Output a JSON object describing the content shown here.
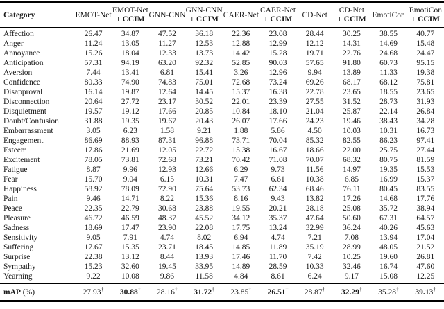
{
  "colors": {
    "background": "#ffffff",
    "text": "#1a1a1a",
    "rule": "#000000"
  },
  "table": {
    "header": {
      "category_label": "Category",
      "model_columns": [
        {
          "line1": "EMOT-Net",
          "line2": ""
        },
        {
          "line1": "EMOT-Net",
          "line2": "+ CCIM"
        },
        {
          "line1": "GNN-CNN",
          "line2": ""
        },
        {
          "line1": "GNN-CNN",
          "line2": "+ CCIM"
        },
        {
          "line1": "CAER-Net",
          "line2": ""
        },
        {
          "line1": "CAER-Net",
          "line2": "+ CCIM"
        },
        {
          "line1": "CD-Net",
          "line2": ""
        },
        {
          "line1": "CD-Net",
          "line2": "+ CCIM"
        },
        {
          "line1": "EmotiCon",
          "line2": ""
        },
        {
          "line1": "EmotiCon",
          "line2": "+ CCIM"
        }
      ]
    },
    "rows": [
      {
        "category": "Affection",
        "values": [
          "26.47",
          "34.87",
          "47.52",
          "36.18",
          "22.36",
          "23.08",
          "28.44",
          "30.25",
          "38.55",
          "40.77"
        ]
      },
      {
        "category": "Anger",
        "values": [
          "11.24",
          "13.05",
          "11.27",
          "12.53",
          "12.88",
          "12.99",
          "12.12",
          "14.31",
          "14.69",
          "15.48"
        ]
      },
      {
        "category": "Annoyance",
        "values": [
          "15.26",
          "18.04",
          "12.33",
          "13.73",
          "14.42",
          "15.28",
          "19.71",
          "22.76",
          "24.68",
          "24.47"
        ]
      },
      {
        "category": "Anticipation",
        "values": [
          "57.31",
          "94.19",
          "63.20",
          "92.32",
          "52.85",
          "90.03",
          "57.65",
          "91.80",
          "60.73",
          "95.15"
        ]
      },
      {
        "category": "Aversion",
        "values": [
          "7.44",
          "13.41",
          "6.81",
          "15.41",
          "3.26",
          "12.96",
          "9.94",
          "13.89",
          "11.33",
          "19.38"
        ]
      },
      {
        "category": "Confidence",
        "values": [
          "80.33",
          "74.90",
          "74.83",
          "75.01",
          "72.68",
          "73.24",
          "69.26",
          "68.17",
          "68.12",
          "75.81"
        ]
      },
      {
        "category": "Disapproval",
        "values": [
          "16.14",
          "19.87",
          "12.64",
          "14.45",
          "15.37",
          "16.38",
          "22.78",
          "23.65",
          "18.55",
          "23.65"
        ]
      },
      {
        "category": "Disconnection",
        "values": [
          "20.64",
          "27.72",
          "23.17",
          "30.52",
          "22.01",
          "23.39",
          "27.55",
          "31.52",
          "28.73",
          "31.93"
        ]
      },
      {
        "category": "Disquietment",
        "values": [
          "19.57",
          "19.12",
          "17.66",
          "20.85",
          "10.84",
          "18.10",
          "21.04",
          "25.87",
          "22.14",
          "26.84"
        ]
      },
      {
        "category": "Doubt/Confusion",
        "values": [
          "31.88",
          "19.35",
          "19.67",
          "20.43",
          "26.07",
          "17.66",
          "24.23",
          "19.46",
          "38.43",
          "34.28"
        ]
      },
      {
        "category": "Embarrassment",
        "values": [
          "3.05",
          "6.23",
          "1.58",
          "9.21",
          "1.88",
          "5.86",
          "4.50",
          "10.03",
          "10.31",
          "16.73"
        ]
      },
      {
        "category": "Engagement",
        "values": [
          "86.69",
          "88.93",
          "87.31",
          "96.88",
          "73.71",
          "70.04",
          "85.32",
          "82.55",
          "86.23",
          "97.41"
        ]
      },
      {
        "category": "Esteem",
        "values": [
          "17.86",
          "21.69",
          "12.05",
          "22.72",
          "15.38",
          "16.67",
          "18.66",
          "22.00",
          "25.75",
          "27.44"
        ]
      },
      {
        "category": "Excitement",
        "values": [
          "78.05",
          "73.81",
          "72.68",
          "73.21",
          "70.42",
          "71.08",
          "70.07",
          "68.32",
          "80.75",
          "81.59"
        ]
      },
      {
        "category": "Fatigue",
        "values": [
          "8.87",
          "9.96",
          "12.93",
          "12.66",
          "6.29",
          "9.73",
          "11.56",
          "14.97",
          "19.35",
          "15.53"
        ]
      },
      {
        "category": "Fear",
        "values": [
          "15.70",
          "9.04",
          "6.15",
          "10.31",
          "7.47",
          "6.61",
          "10.38",
          "6.85",
          "16.99",
          "15.37"
        ]
      },
      {
        "category": "Happiness",
        "values": [
          "58.92",
          "78.09",
          "72.90",
          "75.64",
          "53.73",
          "62.34",
          "68.46",
          "76.11",
          "80.45",
          "83.55"
        ]
      },
      {
        "category": "Pain",
        "values": [
          "9.46",
          "14.71",
          "8.22",
          "15.36",
          "8.16",
          "9.43",
          "13.82",
          "17.26",
          "14.68",
          "17.76"
        ]
      },
      {
        "category": "Peace",
        "values": [
          "22.35",
          "22.79",
          "30.68",
          "23.88",
          "19.55",
          "20.21",
          "28.18",
          "25.08",
          "35.72",
          "38.94"
        ]
      },
      {
        "category": "Pleasure",
        "values": [
          "46.72",
          "46.59",
          "48.37",
          "45.52",
          "34.12",
          "35.37",
          "47.64",
          "50.60",
          "67.31",
          "64.57"
        ]
      },
      {
        "category": "Sadness",
        "values": [
          "18.69",
          "17.47",
          "23.90",
          "22.08",
          "17.75",
          "13.24",
          "32.99",
          "36.24",
          "40.26",
          "45.63"
        ]
      },
      {
        "category": "Sensitivity",
        "values": [
          "9.05",
          "7.91",
          "4.74",
          "8.02",
          "6.94",
          "4.74",
          "7.21",
          "7.08",
          "13.94",
          "17.04"
        ]
      },
      {
        "category": "Suffering",
        "values": [
          "17.67",
          "15.35",
          "23.71",
          "18.45",
          "14.85",
          "11.89",
          "35.19",
          "28.99",
          "48.05",
          "21.52"
        ]
      },
      {
        "category": "Surprise",
        "values": [
          "22.38",
          "13.12",
          "8.44",
          "13.93",
          "17.46",
          "11.70",
          "7.42",
          "10.25",
          "19.60",
          "26.81"
        ]
      },
      {
        "category": "Sympathy",
        "values": [
          "15.23",
          "32.60",
          "19.45",
          "33.95",
          "14.89",
          "28.59",
          "10.33",
          "32.46",
          "16.74",
          "47.60"
        ]
      },
      {
        "category": "Yearning",
        "values": [
          "9.22",
          "10.08",
          "9.86",
          "11.58",
          "4.84",
          "8.61",
          "6.24",
          "9.17",
          "15.08",
          "12.25"
        ]
      }
    ],
    "footer": {
      "label_bold": "mAP",
      "label_rest": " (%)",
      "values": [
        "27.93",
        "30.88",
        "28.16",
        "31.72",
        "23.85",
        "26.51",
        "28.87",
        "32.29",
        "35.28",
        "39.13"
      ],
      "bold_mask": [
        false,
        true,
        false,
        true,
        false,
        true,
        false,
        true,
        false,
        true
      ],
      "marker": "†"
    }
  }
}
